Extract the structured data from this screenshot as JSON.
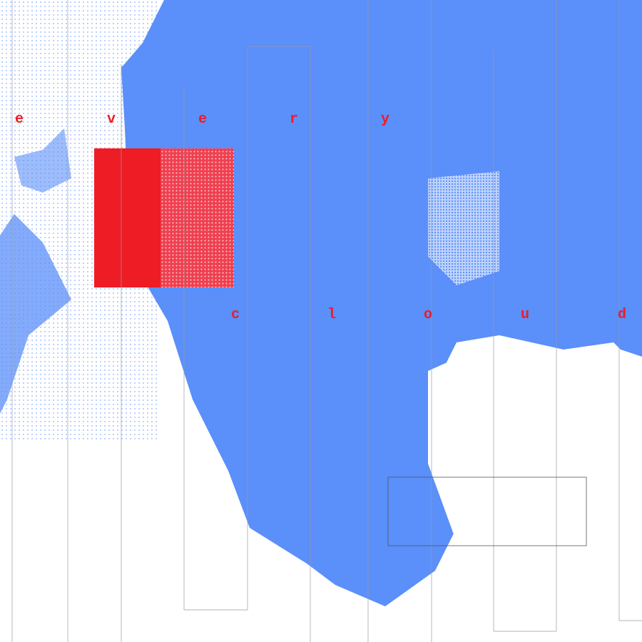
{
  "colors": {
    "background": "#ffffff",
    "cloud_blue": "#5b8ff9",
    "accent_red": "#ee1c25",
    "line_gray": "#9a9aa8"
  },
  "letters_top": [
    "e",
    "v",
    "e",
    "r",
    "y"
  ],
  "letters_bottom": [
    "c",
    "l",
    "o",
    "u",
    "d"
  ]
}
